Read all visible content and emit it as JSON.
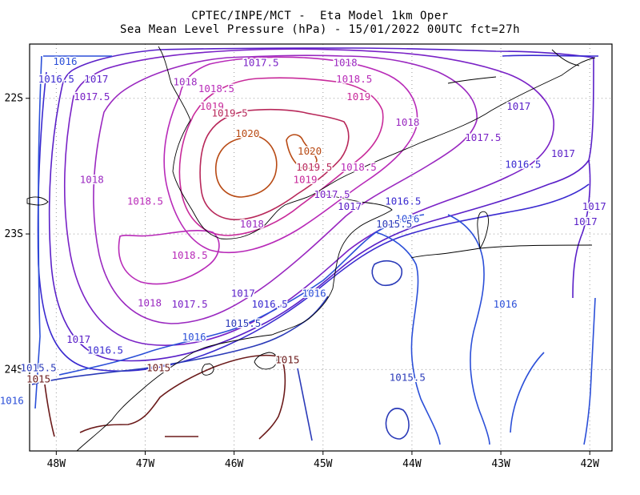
{
  "title_line1": "CPTEC/INPE/MCT -  Eta Model 1km Oper",
  "title_line2": "Sea Mean Level Pressure (hPa) - 15/01/2022 00UTC fct=27h",
  "chart_data": {
    "type": "contour",
    "title": "CPTEC/INPE/MCT - Eta Model 1km Oper — Sea Mean Level Pressure (hPa) - 15/01/2022 00UTC fct=27h",
    "xlabel": "",
    "ylabel": "",
    "xlim": [
      -48.3,
      -41.75
    ],
    "ylim": [
      -24.6,
      -21.6
    ],
    "x_ticks": [
      "48W",
      "47W",
      "46W",
      "45W",
      "44W",
      "43W",
      "42W"
    ],
    "x_tick_values": [
      -48,
      -47,
      -46,
      -45,
      -44,
      -43,
      -42
    ],
    "y_ticks": [
      "22S",
      "23S",
      "24S"
    ],
    "y_tick_values": [
      -22,
      -23,
      -24
    ],
    "grid": true,
    "grid_style": "dotted",
    "contour_interval_hPa": 0.5,
    "contour_levels": [
      {
        "value": 1015,
        "label": "1015",
        "color": "#6b1a1a"
      },
      {
        "value": 1015.5,
        "label": "1015.5",
        "color": "#2a3ab8"
      },
      {
        "value": 1016,
        "label": "1016",
        "color": "#2b4fd8"
      },
      {
        "value": 1016.5,
        "label": "1016.5",
        "color": "#3a2ad0"
      },
      {
        "value": 1017,
        "label": "1017",
        "color": "#5a20c8"
      },
      {
        "value": 1017.5,
        "label": "1017.5",
        "color": "#7a22c6"
      },
      {
        "value": 1018,
        "label": "1018",
        "color": "#9a28c0"
      },
      {
        "value": 1018.5,
        "label": "1018.5",
        "color": "#b82ab8"
      },
      {
        "value": 1019,
        "label": "1019",
        "color": "#c82a9a"
      },
      {
        "value": 1019.5,
        "label": "1019.5",
        "color": "#b8285a"
      },
      {
        "value": 1020,
        "label": "1020",
        "color": "#b84a14"
      }
    ],
    "contour_labels": [
      {
        "text": "1016",
        "lon": -47.9,
        "lat": -21.73,
        "level": 1016
      },
      {
        "text": "1017.5",
        "lon": -45.7,
        "lat": -21.74,
        "level": 1017.5
      },
      {
        "text": "1018",
        "lon": -44.75,
        "lat": -21.74,
        "level": 1018
      },
      {
        "text": "1016.5",
        "lon": -48.0,
        "lat": -21.86,
        "level": 1016.5
      },
      {
        "text": "1017",
        "lon": -47.55,
        "lat": -21.86,
        "level": 1017
      },
      {
        "text": "1018",
        "lon": -46.55,
        "lat": -21.88,
        "level": 1018
      },
      {
        "text": "1018.5",
        "lon": -44.65,
        "lat": -21.86,
        "level": 1018.5
      },
      {
        "text": "1018.5",
        "lon": -46.2,
        "lat": -21.93,
        "level": 1018.5
      },
      {
        "text": "1017.5",
        "lon": -47.6,
        "lat": -21.99,
        "level": 1017.5
      },
      {
        "text": "1019",
        "lon": -44.6,
        "lat": -21.99,
        "level": 1019
      },
      {
        "text": "1019",
        "lon": -46.25,
        "lat": -22.06,
        "level": 1019
      },
      {
        "text": "1019.5",
        "lon": -46.05,
        "lat": -22.11,
        "level": 1019.5
      },
      {
        "text": "1017",
        "lon": -42.8,
        "lat": -22.06,
        "level": 1017
      },
      {
        "text": "1018",
        "lon": -44.05,
        "lat": -22.18,
        "level": 1018
      },
      {
        "text": "1020",
        "lon": -45.85,
        "lat": -22.26,
        "level": 1020
      },
      {
        "text": "1017.5",
        "lon": -43.2,
        "lat": -22.29,
        "level": 1017.5
      },
      {
        "text": "1020",
        "lon": -45.15,
        "lat": -22.39,
        "level": 1020
      },
      {
        "text": "1017",
        "lon": -42.3,
        "lat": -22.41,
        "level": 1017
      },
      {
        "text": "1016.5",
        "lon": -42.75,
        "lat": -22.49,
        "level": 1016.5
      },
      {
        "text": "1019.5",
        "lon": -45.1,
        "lat": -22.51,
        "level": 1019.5
      },
      {
        "text": "1018.5",
        "lon": -44.6,
        "lat": -22.51,
        "level": 1018.5
      },
      {
        "text": "1019",
        "lon": -45.2,
        "lat": -22.6,
        "level": 1019
      },
      {
        "text": "1018",
        "lon": -47.6,
        "lat": -22.6,
        "level": 1018
      },
      {
        "text": "1017.5",
        "lon": -44.9,
        "lat": -22.71,
        "level": 1017.5
      },
      {
        "text": "1018.5",
        "lon": -47.0,
        "lat": -22.76,
        "level": 1018.5
      },
      {
        "text": "1016.5",
        "lon": -44.1,
        "lat": -22.76,
        "level": 1016.5
      },
      {
        "text": "1017",
        "lon": -44.7,
        "lat": -22.8,
        "level": 1017
      },
      {
        "text": "1017",
        "lon": -41.95,
        "lat": -22.8,
        "level": 1017
      },
      {
        "text": "1016",
        "lon": -44.05,
        "lat": -22.89,
        "level": 1016
      },
      {
        "text": "1017",
        "lon": -42.05,
        "lat": -22.91,
        "level": 1017
      },
      {
        "text": "1015.5",
        "lon": -44.2,
        "lat": -22.93,
        "level": 1015.5
      },
      {
        "text": "1018",
        "lon": -45.8,
        "lat": -22.93,
        "level": 1018
      },
      {
        "text": "1018.5",
        "lon": -46.5,
        "lat": -23.16,
        "level": 1018.5
      },
      {
        "text": "1017",
        "lon": -45.9,
        "lat": -23.44,
        "level": 1017
      },
      {
        "text": "1016",
        "lon": -45.1,
        "lat": -23.44,
        "level": 1016
      },
      {
        "text": "1018",
        "lon": -46.95,
        "lat": -23.51,
        "level": 1018
      },
      {
        "text": "1017.5",
        "lon": -46.5,
        "lat": -23.52,
        "level": 1017.5
      },
      {
        "text": "1016.5",
        "lon": -45.6,
        "lat": -23.52,
        "level": 1016.5
      },
      {
        "text": "1016",
        "lon": -42.95,
        "lat": -23.52,
        "level": 1016
      },
      {
        "text": "1015.5",
        "lon": -45.9,
        "lat": -23.66,
        "level": 1015.5
      },
      {
        "text": "1016",
        "lon": -46.45,
        "lat": -23.76,
        "level": 1016
      },
      {
        "text": "1017",
        "lon": -47.75,
        "lat": -23.78,
        "level": 1017
      },
      {
        "text": "1016.5",
        "lon": -47.45,
        "lat": -23.86,
        "level": 1016.5
      },
      {
        "text": "1015",
        "lon": -45.4,
        "lat": -23.93,
        "level": 1015
      },
      {
        "text": "1015.5",
        "lon": -48.2,
        "lat": -23.99,
        "level": 1015.5
      },
      {
        "text": "1015",
        "lon": -46.85,
        "lat": -23.99,
        "level": 1015
      },
      {
        "text": "1015.5",
        "lon": -44.05,
        "lat": -24.06,
        "level": 1015.5
      },
      {
        "text": "1015",
        "lon": -48.2,
        "lat": -24.07,
        "level": 1015
      },
      {
        "text": "1016",
        "lon": -48.5,
        "lat": -24.23,
        "level": 1016
      }
    ],
    "pressure_high_center": {
      "label": "1020",
      "lon": -45.9,
      "lat": -22.35
    }
  },
  "colors": {
    "frame": "#000000",
    "grid": "#9a9a9a",
    "coastline": "#000000"
  }
}
